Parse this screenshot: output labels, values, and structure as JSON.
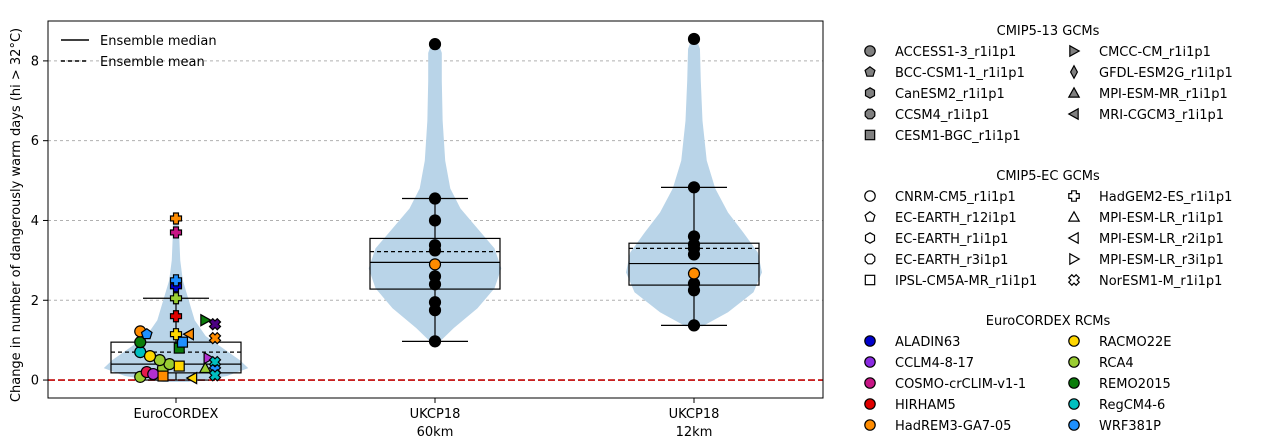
{
  "chart_data": {
    "type": "violin",
    "ylabel": "Change in number of dangerously warm days (hi > 32°C)",
    "ylim": [
      -0.45,
      9.0
    ],
    "yticks": [
      0,
      2,
      4,
      6,
      8
    ],
    "grid": "horizontal-dashed",
    "zero_line_color": "#c00000",
    "violin_color": "#b9d4e8",
    "categories": [
      {
        "label1": "EuroCORDEX",
        "label2": ""
      },
      {
        "label1": "UKCP18",
        "label2": "60km"
      },
      {
        "label1": "UKCP18",
        "label2": "12km"
      }
    ],
    "groups": [
      {
        "name": "EuroCORDEX",
        "median": 0.4,
        "mean": 0.7,
        "q1": 0.18,
        "q3": 0.95,
        "whisker_low": 0.0,
        "whisker_high": 2.05,
        "violin": [
          [
            -0.05,
            0.15
          ],
          [
            0.1,
            0.6
          ],
          [
            0.3,
            0.85
          ],
          [
            0.5,
            0.75
          ],
          [
            0.8,
            0.55
          ],
          [
            1.1,
            0.35
          ],
          [
            1.5,
            0.22
          ],
          [
            2.0,
            0.15
          ],
          [
            2.5,
            0.08
          ],
          [
            3.0,
            0.05
          ],
          [
            3.5,
            0.04
          ],
          [
            4.0,
            0.03
          ],
          [
            4.15,
            0.02
          ]
        ],
        "points": [
          {
            "y": 0.08,
            "dx": -0.55,
            "marker": "circle",
            "color": "#9acd32"
          },
          {
            "y": 0.2,
            "dx": -0.45,
            "marker": "circle",
            "color": "#e6194b"
          },
          {
            "y": 0.15,
            "dx": -0.35,
            "marker": "circle",
            "color": "#b22fcf"
          },
          {
            "y": 0.3,
            "dx": -0.2,
            "marker": "circle",
            "color": "#9acd32"
          },
          {
            "y": 0.4,
            "dx": -0.1,
            "marker": "circle",
            "color": "#9acd32"
          },
          {
            "y": 0.5,
            "dx": -0.25,
            "marker": "circle",
            "color": "#9acd32"
          },
          {
            "y": 0.7,
            "dx": -0.55,
            "marker": "circle",
            "color": "#00c0c0"
          },
          {
            "y": 0.95,
            "dx": -0.55,
            "marker": "circle",
            "color": "#0a7d0a"
          },
          {
            "y": 1.22,
            "dx": -0.55,
            "marker": "circle",
            "color": "#ff8c00"
          },
          {
            "y": 1.15,
            "dx": -0.45,
            "marker": "pentagon",
            "color": "#1e90ff"
          },
          {
            "y": 0.6,
            "dx": -0.4,
            "marker": "circle",
            "color": "#ffd700"
          },
          {
            "y": 0.1,
            "dx": -0.2,
            "marker": "square",
            "color": "#ff8c00"
          },
          {
            "y": 0.35,
            "dx": 0.05,
            "marker": "square",
            "color": "#ffd700"
          },
          {
            "y": 0.8,
            "dx": 0.05,
            "marker": "square",
            "color": "#0a7d0a"
          },
          {
            "y": 0.95,
            "dx": 0.1,
            "marker": "square",
            "color": "#1e90ff"
          },
          {
            "y": 1.15,
            "dx": 0.0,
            "marker": "plus",
            "color": "#ffd700"
          },
          {
            "y": 1.6,
            "dx": 0.0,
            "marker": "plus",
            "color": "#e00000"
          },
          {
            "y": 2.05,
            "dx": 0.0,
            "marker": "plus",
            "color": "#9acd32"
          },
          {
            "y": 2.35,
            "dx": 0.0,
            "marker": "plus",
            "color": "#0000cc"
          },
          {
            "y": 2.5,
            "dx": 0.0,
            "marker": "plus",
            "color": "#1e90ff"
          },
          {
            "y": 3.7,
            "dx": 0.0,
            "marker": "plus",
            "color": "#c71585"
          },
          {
            "y": 4.05,
            "dx": 0.0,
            "marker": "plus",
            "color": "#ff8c00"
          },
          {
            "y": 1.15,
            "dx": 0.2,
            "marker": "triangle-left",
            "color": "#ff8c00"
          },
          {
            "y": 0.05,
            "dx": 0.25,
            "marker": "triangle-left",
            "color": "#ffd700"
          },
          {
            "y": 1.5,
            "dx": 0.45,
            "marker": "triangle-right",
            "color": "#0a7d0a"
          },
          {
            "y": 0.3,
            "dx": 0.45,
            "marker": "triangle-up",
            "color": "#9acd32"
          },
          {
            "y": 0.55,
            "dx": 0.5,
            "marker": "triangle-right",
            "color": "#b22fcf"
          },
          {
            "y": 1.4,
            "dx": 0.6,
            "marker": "x",
            "color": "#4b0082"
          },
          {
            "y": 1.05,
            "dx": 0.6,
            "marker": "x",
            "color": "#ff8c00"
          },
          {
            "y": 0.45,
            "dx": 0.6,
            "marker": "x",
            "color": "#00c0c0"
          },
          {
            "y": 0.25,
            "dx": 0.6,
            "marker": "x",
            "color": "#1e90ff"
          },
          {
            "y": 0.12,
            "dx": 0.6,
            "marker": "x",
            "color": "#00c0c0"
          }
        ]
      },
      {
        "name": "UKCP18 60km",
        "median": 2.95,
        "mean": 3.22,
        "q1": 2.28,
        "q3": 3.55,
        "whisker_low": 0.97,
        "whisker_high": 4.55,
        "violin": [
          [
            0.95,
            0.05
          ],
          [
            1.3,
            0.22
          ],
          [
            1.8,
            0.5
          ],
          [
            2.3,
            0.7
          ],
          [
            2.8,
            0.78
          ],
          [
            3.3,
            0.7
          ],
          [
            3.8,
            0.5
          ],
          [
            4.3,
            0.3
          ],
          [
            4.8,
            0.18
          ],
          [
            5.5,
            0.12
          ],
          [
            6.5,
            0.09
          ],
          [
            7.5,
            0.08
          ],
          [
            8.2,
            0.08
          ],
          [
            8.5,
            0.03
          ]
        ],
        "points": [
          {
            "y": 0.97,
            "color": "#000000"
          },
          {
            "y": 1.75,
            "color": "#000000"
          },
          {
            "y": 1.95,
            "color": "#000000"
          },
          {
            "y": 2.4,
            "color": "#000000"
          },
          {
            "y": 2.6,
            "color": "#000000"
          },
          {
            "y": 2.9,
            "color": "#ff8c00"
          },
          {
            "y": 3.25,
            "color": "#000000"
          },
          {
            "y": 3.38,
            "color": "#000000"
          },
          {
            "y": 4.0,
            "color": "#000000"
          },
          {
            "y": 4.55,
            "color": "#000000"
          },
          {
            "y": 8.42,
            "color": "#000000"
          }
        ]
      },
      {
        "name": "UKCP18 12km",
        "median": 2.92,
        "mean": 3.3,
        "q1": 2.38,
        "q3": 3.43,
        "whisker_low": 1.37,
        "whisker_high": 4.83,
        "violin": [
          [
            1.35,
            0.1
          ],
          [
            1.7,
            0.4
          ],
          [
            2.2,
            0.7
          ],
          [
            2.7,
            0.8
          ],
          [
            3.2,
            0.75
          ],
          [
            3.7,
            0.58
          ],
          [
            4.2,
            0.4
          ],
          [
            4.8,
            0.25
          ],
          [
            5.5,
            0.15
          ],
          [
            6.5,
            0.1
          ],
          [
            7.5,
            0.08
          ],
          [
            8.3,
            0.07
          ],
          [
            8.6,
            0.02
          ]
        ],
        "points": [
          {
            "y": 1.37,
            "color": "#000000"
          },
          {
            "y": 2.25,
            "color": "#000000"
          },
          {
            "y": 2.42,
            "color": "#000000"
          },
          {
            "y": 2.67,
            "color": "#ff8c00"
          },
          {
            "y": 3.15,
            "color": "#000000"
          },
          {
            "y": 3.3,
            "color": "#000000"
          },
          {
            "y": 3.4,
            "color": "#000000"
          },
          {
            "y": 3.6,
            "color": "#000000"
          },
          {
            "y": 4.83,
            "color": "#000000"
          },
          {
            "y": 8.55,
            "color": "#000000"
          }
        ]
      }
    ],
    "inner_legend": [
      {
        "label": "Ensemble median",
        "style": "solid"
      },
      {
        "label": "Ensemble mean",
        "style": "dashed"
      }
    ]
  },
  "legend": {
    "sections": [
      {
        "title": "CMIP5-13 GCMs",
        "kind": "gray-marker",
        "items": [
          {
            "label": "ACCESS1-3_r1i1p1",
            "marker": "circle"
          },
          {
            "label": "BCC-CSM1-1_r1i1p1",
            "marker": "pentagon"
          },
          {
            "label": "CanESM2_r1i1p1",
            "marker": "hexagon"
          },
          {
            "label": "CCSM4_r1i1p1",
            "marker": "octagon"
          },
          {
            "label": "CESM1-BGC_r1i1p1",
            "marker": "square"
          },
          {
            "label": "CMCC-CM_r1i1p1",
            "marker": "triangle-right"
          },
          {
            "label": "GFDL-ESM2G_r1i1p1",
            "marker": "diamond"
          },
          {
            "label": "MPI-ESM-MR_r1i1p1",
            "marker": "triangle-up"
          },
          {
            "label": "MRI-CGCM3_r1i1p1",
            "marker": "triangle-left"
          }
        ]
      },
      {
        "title": "CMIP5-EC GCMs",
        "kind": "open-marker",
        "items": [
          {
            "label": "CNRM-CM5_r1i1p1",
            "marker": "circle"
          },
          {
            "label": "EC-EARTH_r12i1p1",
            "marker": "pentagon"
          },
          {
            "label": "EC-EARTH_r1i1p1",
            "marker": "hexagon"
          },
          {
            "label": "EC-EARTH_r3i1p1",
            "marker": "octagon"
          },
          {
            "label": "IPSL-CM5A-MR_r1i1p1",
            "marker": "square"
          },
          {
            "label": "HadGEM2-ES_r1i1p1",
            "marker": "plus"
          },
          {
            "label": "MPI-ESM-LR_r1i1p1",
            "marker": "triangle-up"
          },
          {
            "label": "MPI-ESM-LR_r2i1p1",
            "marker": "triangle-left"
          },
          {
            "label": "MPI-ESM-LR_r3i1p1",
            "marker": "triangle-right"
          },
          {
            "label": "NorESM1-M_r1i1p1",
            "marker": "x"
          }
        ]
      },
      {
        "title": "EuroCORDEX RCMs",
        "kind": "color-circle",
        "items": [
          {
            "label": "ALADIN63",
            "color": "#0000cc"
          },
          {
            "label": "CCLM4-8-17",
            "color": "#8a2be2"
          },
          {
            "label": "COSMO-crCLIM-v1-1",
            "color": "#c71585"
          },
          {
            "label": "HIRHAM5",
            "color": "#e00000"
          },
          {
            "label": "HadREM3-GA7-05",
            "color": "#ff8c00"
          },
          {
            "label": "RACMO22E",
            "color": "#ffd700"
          },
          {
            "label": "RCA4",
            "color": "#9acd32"
          },
          {
            "label": "REMO2015",
            "color": "#0a7d0a"
          },
          {
            "label": "RegCM4-6",
            "color": "#00c0c0"
          },
          {
            "label": "WRF381P",
            "color": "#1e90ff"
          }
        ]
      }
    ]
  }
}
